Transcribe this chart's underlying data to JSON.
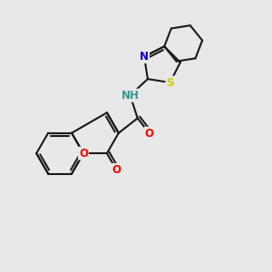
{
  "bg_color": "#e8e8e8",
  "bond_color": "#1a1a1a",
  "bond_width": 1.5,
  "doff": 0.1,
  "atom_colors": {
    "O": "#ff0000",
    "N": "#0000cc",
    "S": "#cccc00",
    "NH": "#339999",
    "C": "#1a1a1a"
  },
  "font_size": 8.5,
  "fig_size": [
    3.0,
    3.0
  ],
  "dpi": 100
}
